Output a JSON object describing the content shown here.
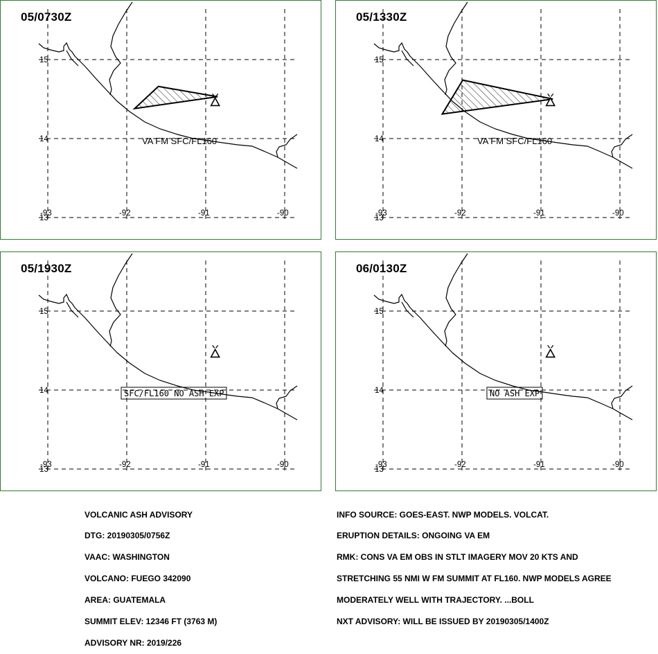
{
  "panels": [
    {
      "time": "05/0730Z",
      "ash_cloud": true,
      "label_text": "VA FM SFC/FL160",
      "label_boxed": false
    },
    {
      "time": "05/1330Z",
      "ash_cloud": true,
      "label_text": "VA FM SFC/FL160",
      "label_boxed": false
    },
    {
      "time": "05/1930Z",
      "ash_cloud": false,
      "label_text": "SFC/FL160 NO ASH EXP",
      "label_boxed": true
    },
    {
      "time": "06/0130Z",
      "ash_cloud": false,
      "label_text": "NO ASH EXP",
      "label_boxed": true
    }
  ],
  "map": {
    "lat_labels": [
      "15",
      "14",
      "13"
    ],
    "lon_labels": [
      "-93",
      "-92",
      "-91",
      "-90"
    ],
    "volcano": {
      "lat": 14.47,
      "lon": -90.88,
      "name": "FUEGO"
    },
    "ash_polygons": [
      [
        [
          -91.6,
          14.66
        ],
        [
          -90.85,
          14.53
        ],
        [
          -91.9,
          14.38
        ]
      ],
      [
        [
          -91.99,
          14.74
        ],
        [
          -90.85,
          14.5
        ],
        [
          -92.25,
          14.31
        ]
      ]
    ]
  },
  "advisory_left": [
    "VOLCANIC ASH ADVISORY",
    "DTG: 20190305/0756Z",
    "VAAC: WASHINGTON",
    "VOLCANO: FUEGO 342090",
    "AREA: GUATEMALA",
    "SUMMIT ELEV: 12346 FT (3763 M)",
    "ADVISORY NR: 2019/226"
  ],
  "advisory_right": [
    "INFO SOURCE: GOES-EAST. NWP MODELS. VOLCAT.",
    "ERUPTION DETAILS: ONGOING VA EM",
    "RMK: CONS VA EM OBS IN STLT IMAGERY MOV 20 KTS AND",
    "STRETCHING 55 NMI W FM SUMMIT AT FL160. NWP MODELS AGREE",
    "MODERATELY WELL WITH TRAJECTORY. ...BOLL",
    "NXT ADVISORY: WILL BE ISSUED BY 20190305/1400Z"
  ],
  "colors": {
    "border": "#2f7d2f",
    "ink": "#000000",
    "background": "#ffffff"
  }
}
